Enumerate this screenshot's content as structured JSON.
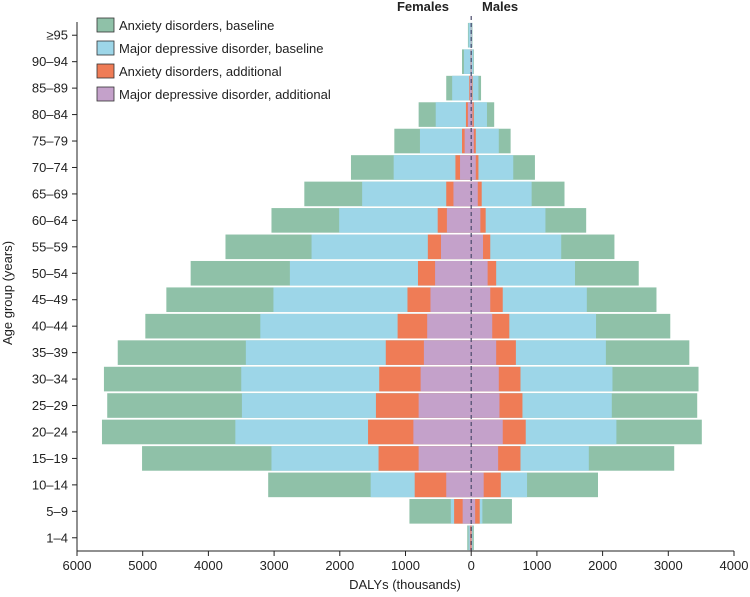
{
  "chart_data": {
    "type": "bar",
    "orientation": "horizontal-population-pyramid",
    "xlabel": "DALYs (thousands)",
    "ylabel": "Age group (years)",
    "left_label": "Females",
    "right_label": "Males",
    "xlim": [
      -6000,
      4000
    ],
    "xticks": [
      -6000,
      -5000,
      -4000,
      -3000,
      -2000,
      -1000,
      0,
      1000,
      2000,
      3000,
      4000
    ],
    "xtick_labels": [
      "6000",
      "5000",
      "4000",
      "3000",
      "2000",
      "1000",
      "0",
      "1000",
      "2000",
      "3000",
      "4000"
    ],
    "legend_position": "top-left",
    "categories": [
      "≥95",
      "90–94",
      "85–89",
      "80–84",
      "75–79",
      "70–74",
      "65–69",
      "60–64",
      "55–59",
      "50–54",
      "45–49",
      "40–44",
      "35–39",
      "30–34",
      "25–29",
      "20–24",
      "15–19",
      "10–14",
      "5–9",
      "1–4"
    ],
    "series": [
      {
        "name": "Anxiety disorders, baseline",
        "color": "#8fc1a8",
        "females": [
          50,
          140,
          380,
          800,
          1170,
          1830,
          2540,
          3040,
          3740,
          4270,
          4640,
          4960,
          5380,
          5590,
          5540,
          5620,
          5010,
          3090,
          940,
          60
        ],
        "males": [
          20,
          40,
          150,
          350,
          600,
          970,
          1420,
          1750,
          2180,
          2550,
          2820,
          3030,
          3320,
          3460,
          3440,
          3510,
          3090,
          1930,
          620,
          40
        ]
      },
      {
        "name": "Major depressive disorder, baseline",
        "color": "#9dd6e8",
        "females": [
          40,
          110,
          290,
          540,
          780,
          1180,
          1660,
          2010,
          2430,
          2760,
          3010,
          3210,
          3430,
          3500,
          3490,
          3590,
          3040,
          1530,
          310,
          40
        ],
        "males": [
          15,
          30,
          110,
          240,
          420,
          640,
          920,
          1130,
          1370,
          1580,
          1760,
          1900,
          2050,
          2150,
          2140,
          2210,
          1790,
          850,
          170,
          20
        ]
      },
      {
        "name": "Anxiety disorders, additional",
        "color": "#ef7c56",
        "females": [
          5,
          10,
          30,
          80,
          140,
          240,
          380,
          510,
          660,
          810,
          970,
          1120,
          1300,
          1400,
          1450,
          1570,
          1410,
          860,
          260,
          20
        ],
        "males": [
          3,
          6,
          20,
          40,
          70,
          110,
          160,
          220,
          290,
          380,
          480,
          580,
          680,
          750,
          780,
          830,
          750,
          450,
          130,
          10
        ]
      },
      {
        "name": "Major depressive disorder, additional",
        "color": "#c4a1ca",
        "females": [
          3,
          8,
          20,
          50,
          100,
          170,
          270,
          370,
          460,
          550,
          620,
          670,
          720,
          770,
          800,
          880,
          800,
          380,
          130,
          10
        ],
        "males": [
          2,
          4,
          10,
          20,
          40,
          70,
          100,
          140,
          180,
          250,
          290,
          320,
          380,
          420,
          430,
          480,
          410,
          190,
          60,
          5
        ]
      }
    ]
  }
}
